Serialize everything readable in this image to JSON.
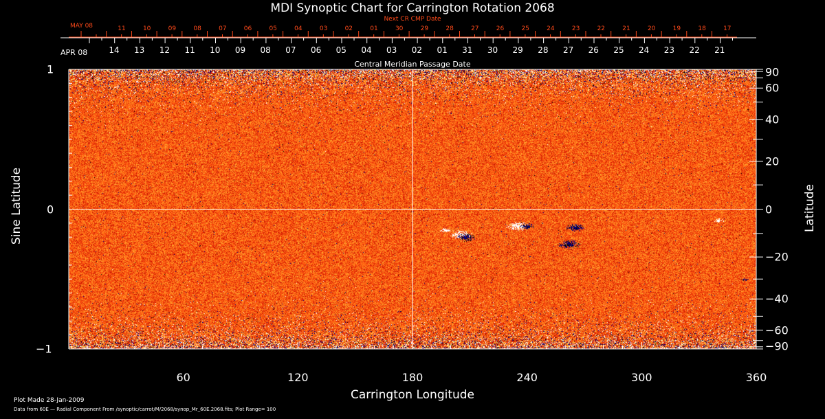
{
  "chart_data": {
    "type": "heatmap",
    "title": "MDI Synoptic Chart for Carrington Rotation 2068",
    "xlabel": "Carrington Longitude",
    "ylabel": "Sine Latitude",
    "ylabel_right": "Latitude",
    "xlim": [
      0,
      360
    ],
    "ylim": [
      -1,
      1
    ],
    "x_ticks": [
      60,
      120,
      180,
      240,
      300,
      360
    ],
    "y_ticks_left": [
      {
        "v": 1,
        "label": "1"
      },
      {
        "v": 0,
        "label": "0"
      },
      {
        "v": -1,
        "label": "−1"
      }
    ],
    "y_ticks_right": [
      "90",
      "60",
      "40",
      "20",
      "0",
      "−20",
      "−40",
      "−60",
      "−90"
    ],
    "y_ticks_right_values": [
      90,
      60,
      40,
      20,
      0,
      -20,
      -40,
      -60,
      -90
    ],
    "top_axis": {
      "label": "Central Meridian Passage Date",
      "start_month": "APR 08",
      "dates": [
        "14",
        "13",
        "12",
        "11",
        "10",
        "09",
        "08",
        "07",
        "06",
        "05",
        "04",
        "03",
        "02",
        "01",
        "31",
        "30",
        "29",
        "28",
        "27",
        "26",
        "25",
        "24",
        "23",
        "22",
        "21"
      ]
    },
    "next_cr_axis": {
      "label": "Next CR CMP Date",
      "start_month": "MAY 08",
      "dates": [
        "11",
        "10",
        "09",
        "08",
        "07",
        "06",
        "05",
        "04",
        "03",
        "02",
        "01",
        "30",
        "29",
        "28",
        "27",
        "26",
        "25",
        "24",
        "23",
        "22",
        "21",
        "20",
        "19",
        "18",
        "17"
      ]
    },
    "plot_range": 100,
    "colormap": [
      "#000080",
      "#cc1a00",
      "#ff5a10",
      "#ffa030",
      "#ffff60",
      "#ffffff"
    ]
  },
  "footer": {
    "plot_made": "Plot Made 28-Jan-2009",
    "data_from": "Data from 60E — Radial Component From /synoptic/carrot/M/2068/synop_Mr_60E.2068.fits; Plot Range=   100"
  }
}
